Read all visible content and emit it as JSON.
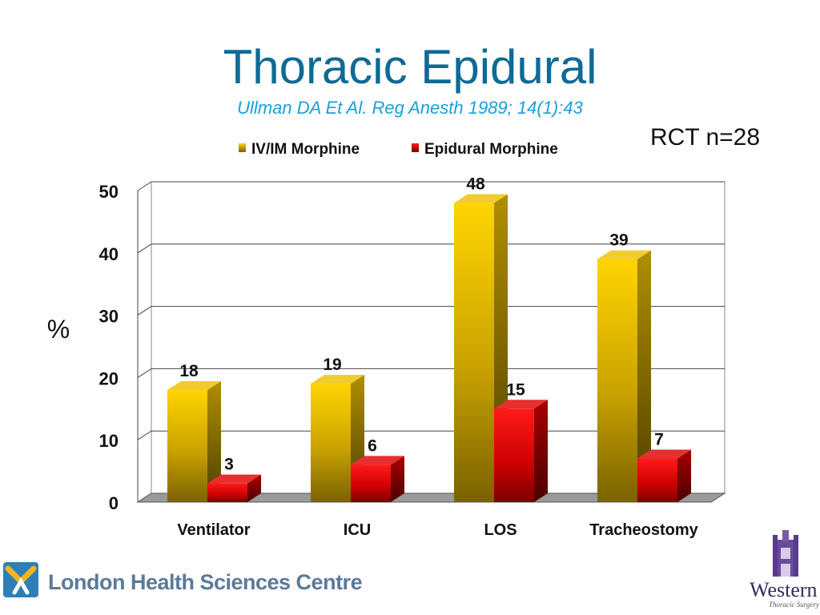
{
  "slide": {
    "title": "Thoracic Epidural",
    "subtitle": "Ullman DA Et Al.  Reg Anesth 1989; 14(1):43",
    "note": "RCT n=28"
  },
  "chart_data": {
    "type": "bar",
    "categories": [
      "Ventilator",
      "ICU",
      "LOS",
      "Tracheostomy"
    ],
    "series": [
      {
        "name": "IV/IM Morphine",
        "values": [
          18,
          19,
          48,
          39
        ],
        "color": "#f5c400"
      },
      {
        "name": "Epidural Morphine",
        "values": [
          3,
          6,
          15,
          7
        ],
        "color": "#e00000"
      }
    ],
    "ylabel": "%",
    "ylim": [
      0,
      50
    ],
    "yticks": [
      0,
      10,
      20,
      30,
      40,
      50
    ],
    "grid": true,
    "legend": "top",
    "style": "3d"
  },
  "footer": {
    "left_logo": "London Health Sciences Centre",
    "right_logo": "Western",
    "right_logo_sub": "Thoracic Surgery"
  }
}
